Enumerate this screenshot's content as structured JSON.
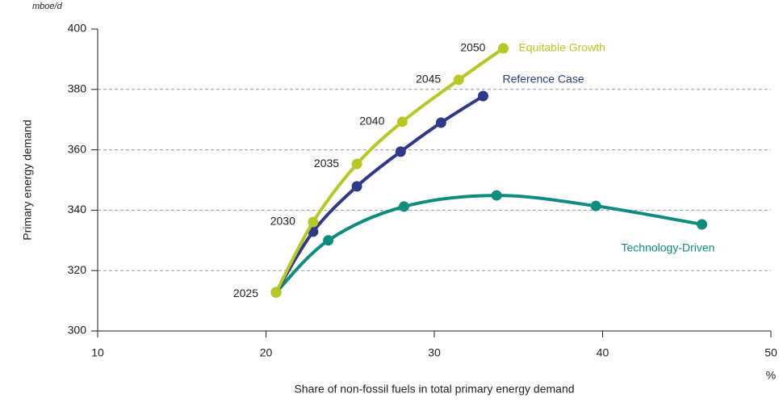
{
  "chart_data": {
    "type": "line",
    "y_unit": "mboe/d",
    "x_unit": "%",
    "ylabel": "Primary energy demand",
    "xlabel": "Share of non-fossil fuels in total primary energy demand",
    "xlim": [
      10,
      50
    ],
    "xticks": [
      10,
      20,
      30,
      40,
      50
    ],
    "ylim": [
      300,
      400
    ],
    "yticks": [
      300,
      320,
      340,
      360,
      380,
      400
    ],
    "grid": true,
    "point_labels": [
      "2025",
      "2030",
      "2035",
      "2040",
      "2045",
      "2050"
    ],
    "series": [
      {
        "name": "Equitable Growth",
        "color": "#b7c824",
        "x": [
          20.6,
          22.8,
          25.4,
          28.1,
          31.45,
          34.1
        ],
        "values": [
          312.8,
          336.1,
          355.3,
          369.3,
          383.2,
          393.6
        ]
      },
      {
        "name": "Reference Case",
        "color": "#2e3a87",
        "x": [
          20.6,
          22.8,
          25.4,
          28.0,
          30.4,
          32.9
        ],
        "values": [
          312.8,
          332.9,
          347.9,
          359.4,
          369.0,
          377.8
        ]
      },
      {
        "name": "Technology-Driven",
        "color": "#0e8c7e",
        "x": [
          20.6,
          23.7,
          28.2,
          33.7,
          39.6,
          45.9
        ],
        "values": [
          312.8,
          330.0,
          341.2,
          344.9,
          341.4,
          335.3
        ]
      }
    ]
  }
}
